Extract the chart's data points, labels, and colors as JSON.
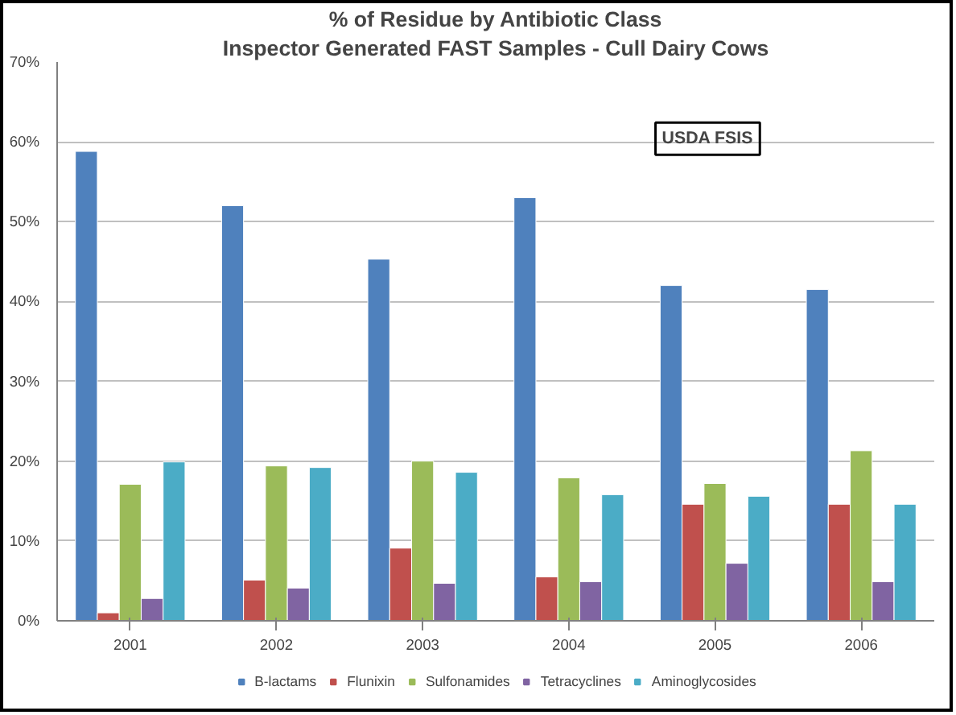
{
  "chart_data": {
    "type": "bar",
    "title": "% of Residue by Antibiotic Class",
    "subtitle": "Inspector Generated FAST Samples - Cull Dairy Cows",
    "categories": [
      "2001",
      "2002",
      "2003",
      "2004",
      "2005",
      "2006"
    ],
    "series": [
      {
        "name": "B-lactams",
        "color": "#4f81bd",
        "values": [
          58.8,
          52.0,
          45.3,
          53.0,
          42.0,
          41.5
        ]
      },
      {
        "name": "Flunixin",
        "color": "#c0504d",
        "values": [
          1.0,
          5.1,
          9.1,
          5.5,
          14.6,
          14.6
        ]
      },
      {
        "name": "Sulfonamides",
        "color": "#9bbb59",
        "values": [
          17.1,
          19.4,
          20.0,
          17.9,
          17.2,
          21.3
        ]
      },
      {
        "name": "Tetracyclines",
        "color": "#8064a2",
        "values": [
          2.8,
          4.1,
          4.7,
          4.9,
          7.2,
          4.9
        ]
      },
      {
        "name": "Aminoglycosides",
        "color": "#4bacc6",
        "values": [
          19.9,
          19.2,
          18.6,
          15.8,
          15.6,
          14.6
        ]
      }
    ],
    "ylim": [
      0,
      70
    ],
    "yticks": [
      {
        "value": 0,
        "label": "0%"
      },
      {
        "value": 10,
        "label": "10%"
      },
      {
        "value": 20,
        "label": "20%"
      },
      {
        "value": 30,
        "label": "30%"
      },
      {
        "value": 40,
        "label": "40%"
      },
      {
        "value": 50,
        "label": "50%"
      },
      {
        "value": 60,
        "label": "60%"
      },
      {
        "value": 70,
        "label": "70%"
      }
    ],
    "grid": "y",
    "legend": "bottom",
    "annotations": [
      "USDA FSIS"
    ]
  }
}
